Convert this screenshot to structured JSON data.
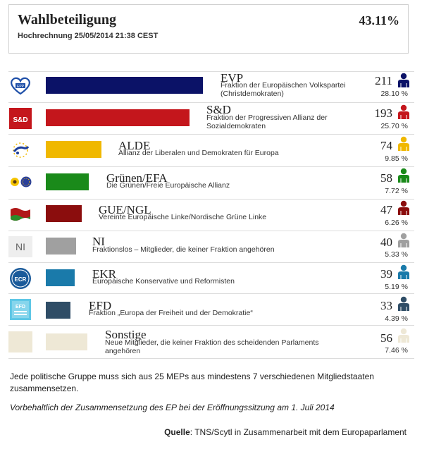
{
  "header": {
    "title": "Wahlbeteiligung",
    "subtitle": "Hochrechnung 25/05/2014 21:38 CEST",
    "turnout": "43.11%"
  },
  "groups": [
    {
      "abbr": "EVP",
      "full": "Fraktion der Europäischen Volkspartei (Christdemokraten)",
      "seats": "211",
      "share": "28.10 %",
      "color": "#0b1267",
      "logo": "evp-heart-logo-icon"
    },
    {
      "abbr": "S&D",
      "full": "Fraktion der Progressiven Allianz der Sozialdemokraten",
      "seats": "193",
      "share": "25.70 %",
      "color": "#c4161c",
      "logo": "sd-logo-icon"
    },
    {
      "abbr": "ALDE",
      "full": "Allianz der Liberalen und Demokraten für Europa",
      "seats": "74",
      "share": "9.85 %",
      "color": "#f0b800",
      "logo": "alde-logo-icon"
    },
    {
      "abbr": "Grünen/EFA",
      "full": "Die Grünen/Freie Europäische Allianz",
      "seats": "58",
      "share": "7.72 %",
      "color": "#1a8a1a",
      "logo": "greens-efa-logo-icon"
    },
    {
      "abbr": "GUE/NGL",
      "full": "Vereinte Europäische Linke/Nordische Grüne Linke",
      "seats": "47",
      "share": "6.26 %",
      "color": "#8b0d0d",
      "logo": "gue-ngl-flag-icon"
    },
    {
      "abbr": "NI",
      "full": "Fraktionslos – Mitglieder, die keiner Fraktion angehören",
      "seats": "40",
      "share": "5.33 %",
      "color": "#a0a0a0",
      "logo": "ni-logo-icon",
      "logo_text": "NI"
    },
    {
      "abbr": "EKR",
      "full": "Europäische Konservative und Reformisten",
      "seats": "39",
      "share": "5.19 %",
      "color": "#1a7aaa",
      "logo": "ecr-logo-icon",
      "logo_text": "ECR"
    },
    {
      "abbr": "EFD",
      "full": "Fraktion „Europa der Freiheit und der Demokratie“",
      "seats": "33",
      "share": "4.39 %",
      "color": "#2f4d66",
      "logo": "efd-logo-icon",
      "logo_text": "EFD"
    },
    {
      "abbr": "Sonstige",
      "full": "Neue Mitglieder, die keiner Fraktion des scheidenden Parlaments angehören",
      "seats": "56",
      "share": "7.46 %",
      "color": "#eee8d6",
      "logo": "others-logo-icon"
    }
  ],
  "notes": {
    "line1": "Jede politische Gruppe muss sich aus 25 MEPs aus mindestens 7 verschiedenen Mitgliedstaaten zusammensetzen.",
    "line2": "Vorbehaltlich der Zusammensetzung des EP bei der Eröffnungssitzung am 1. Juli 2014",
    "source_label": "Quelle",
    "source_text": ": TNS/Scytl in Zusammenarbeit mit dem Europaparlament"
  }
}
